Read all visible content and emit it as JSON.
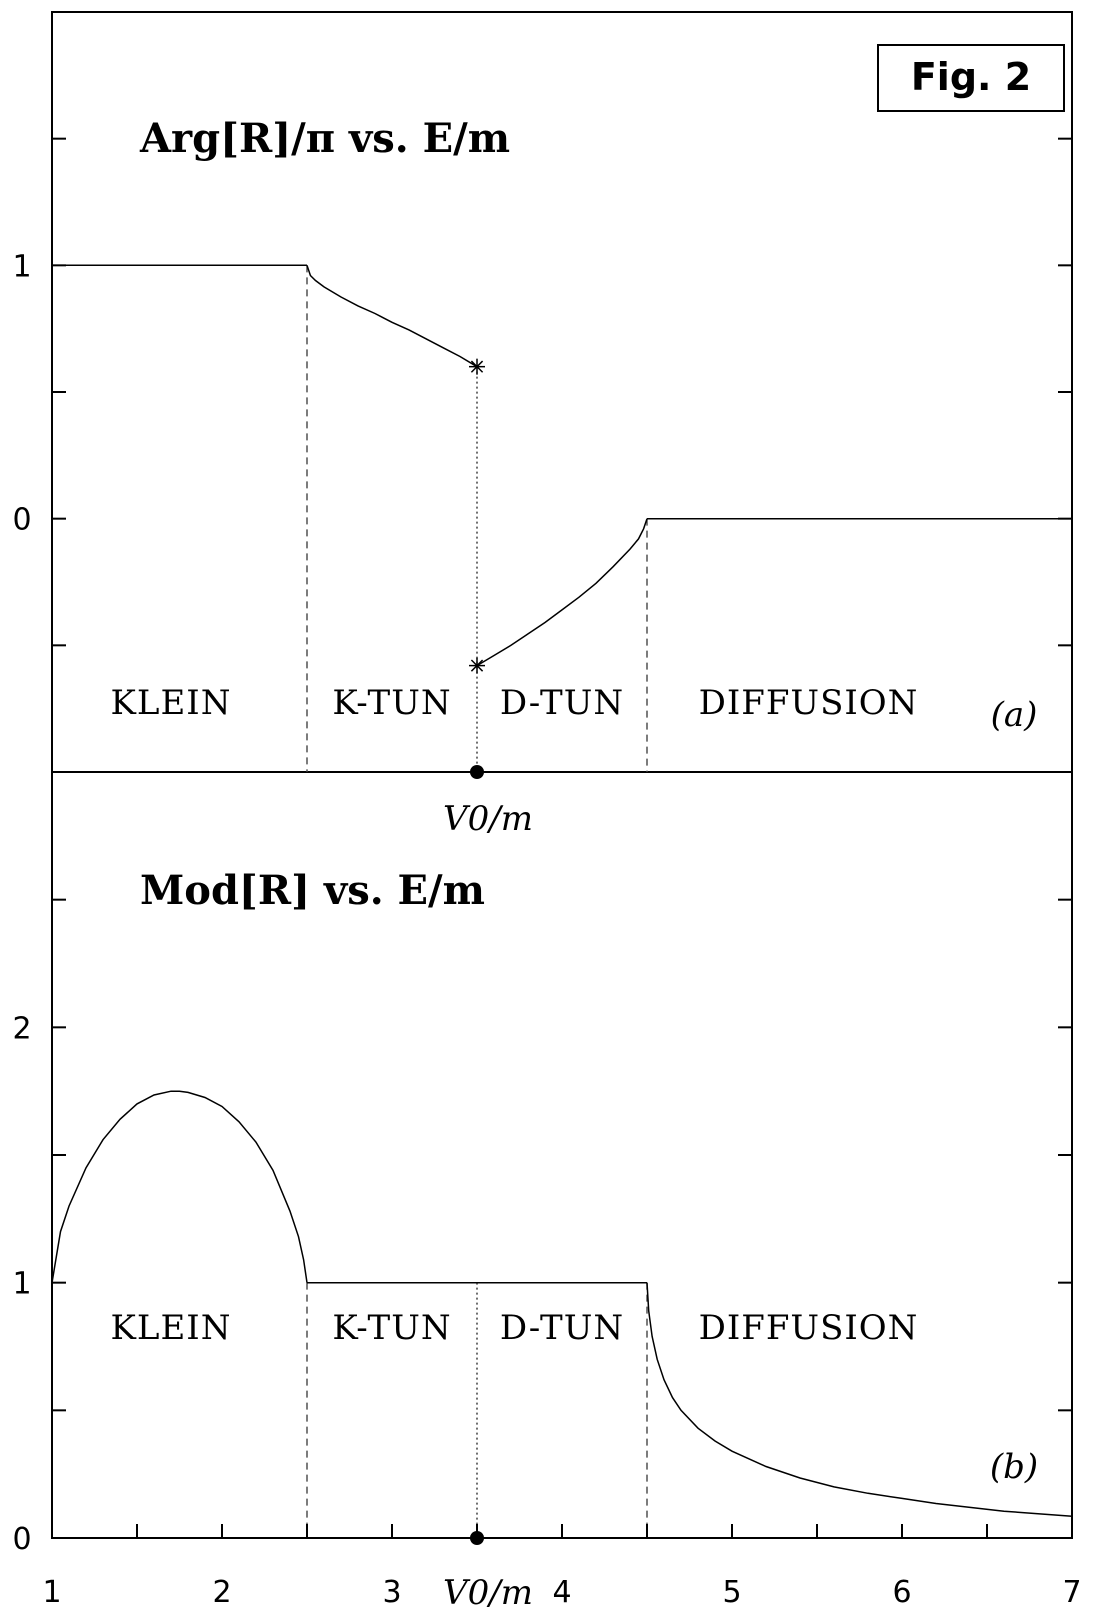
{
  "figure_label": "Fig. 2",
  "chart_data": [
    {
      "type": "line",
      "panel_tag": "(a)",
      "title": "Arg[R]/π vs. E/m",
      "x_marker_label": "V0/m",
      "xlim": [
        1,
        7
      ],
      "ylim": [
        -1,
        2
      ],
      "ytick_labels": [
        {
          "value": 1,
          "label": "1"
        },
        {
          "value": 0,
          "label": "0"
        }
      ],
      "regions": [
        {
          "name": "KLEIN",
          "x_center": 1.7
        },
        {
          "name": "K-TUN",
          "x_center": 3.0
        },
        {
          "name": "D-TUN",
          "x_center": 4.0
        },
        {
          "name": "DIFFUSION",
          "x_center": 5.45
        }
      ],
      "boundaries_dashed": [
        2.5,
        4.5
      ],
      "boundary_dotted": 3.5,
      "marker_x": 3.5,
      "star_points": [
        {
          "x": 3.5,
          "y": 0.6
        },
        {
          "x": 3.5,
          "y": -0.58
        }
      ],
      "series": [
        {
          "x": [
            1,
            2.5
          ],
          "y": [
            1,
            1
          ]
        },
        {
          "x": [
            2.5,
            2.52,
            2.55,
            2.6,
            2.7,
            2.8,
            2.9,
            3.0,
            3.1,
            3.2,
            3.3,
            3.4,
            3.5
          ],
          "y": [
            1,
            0.96,
            0.94,
            0.915,
            0.875,
            0.84,
            0.81,
            0.775,
            0.745,
            0.71,
            0.675,
            0.64,
            0.6
          ]
        },
        {
          "x": [
            3.5,
            3.6,
            3.7,
            3.8,
            3.9,
            4.0,
            4.1,
            4.2,
            4.3,
            4.4,
            4.45,
            4.48,
            4.5
          ],
          "y": [
            -0.58,
            -0.54,
            -0.5,
            -0.455,
            -0.41,
            -0.36,
            -0.31,
            -0.255,
            -0.19,
            -0.12,
            -0.08,
            -0.04,
            0
          ]
        },
        {
          "x": [
            4.5,
            7
          ],
          "y": [
            0,
            0
          ]
        }
      ]
    },
    {
      "type": "line",
      "panel_tag": "(b)",
      "title": "Mod[R] vs. E/m",
      "x_marker_label": "V0/m",
      "xlim": [
        1,
        7
      ],
      "ylim": [
        0,
        3
      ],
      "xticks": [
        1,
        2,
        3,
        4,
        5,
        6,
        7
      ],
      "xtick_labels": [
        "1",
        "2",
        "3",
        "4",
        "5",
        "6",
        "7"
      ],
      "ytick_labels": [
        {
          "value": 2,
          "label": "2"
        },
        {
          "value": 1,
          "label": "1"
        },
        {
          "value": 0,
          "label": "0"
        }
      ],
      "regions": [
        {
          "name": "KLEIN",
          "x_center": 1.7
        },
        {
          "name": "K-TUN",
          "x_center": 3.0
        },
        {
          "name": "D-TUN",
          "x_center": 4.0
        },
        {
          "name": "DIFFUSION",
          "x_center": 5.45
        }
      ],
      "boundaries_dashed": [
        2.5,
        4.5
      ],
      "boundary_dotted": 3.5,
      "marker_x": 3.5,
      "series": [
        {
          "x": [
            1,
            1.05,
            1.1,
            1.2,
            1.3,
            1.4,
            1.5,
            1.6,
            1.7,
            1.75,
            1.8,
            1.9,
            2.0,
            2.1,
            2.2,
            2.3,
            2.4,
            2.45,
            2.48,
            2.5
          ],
          "y": [
            1,
            1.2,
            1.3,
            1.45,
            1.56,
            1.64,
            1.7,
            1.735,
            1.75,
            1.75,
            1.745,
            1.725,
            1.69,
            1.63,
            1.55,
            1.44,
            1.28,
            1.18,
            1.09,
            1
          ]
        },
        {
          "x": [
            2.5,
            4.5
          ],
          "y": [
            1,
            1
          ]
        },
        {
          "x": [
            4.5,
            4.51,
            4.53,
            4.56,
            4.6,
            4.65,
            4.7,
            4.8,
            4.9,
            5.0,
            5.2,
            5.4,
            5.6,
            5.8,
            6.0,
            6.2,
            6.4,
            6.6,
            6.8,
            7.0
          ],
          "y": [
            1,
            0.89,
            0.79,
            0.7,
            0.62,
            0.55,
            0.5,
            0.43,
            0.38,
            0.34,
            0.28,
            0.235,
            0.2,
            0.175,
            0.155,
            0.135,
            0.12,
            0.105,
            0.095,
            0.085
          ]
        }
      ]
    }
  ]
}
